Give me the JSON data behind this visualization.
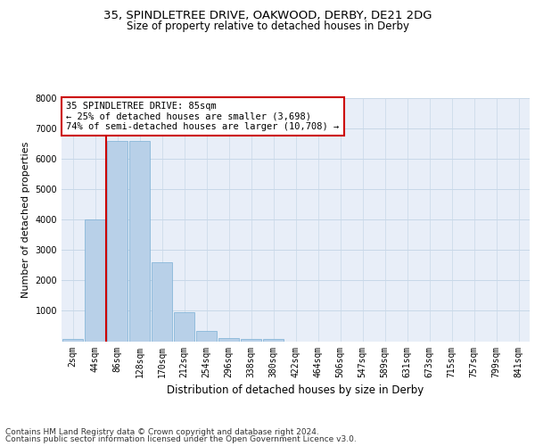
{
  "title_line1": "35, SPINDLETREE DRIVE, OAKWOOD, DERBY, DE21 2DG",
  "title_line2": "Size of property relative to detached houses in Derby",
  "xlabel": "Distribution of detached houses by size in Derby",
  "ylabel": "Number of detached properties",
  "categories": [
    "2sqm",
    "44sqm",
    "86sqm",
    "128sqm",
    "170sqm",
    "212sqm",
    "254sqm",
    "296sqm",
    "338sqm",
    "380sqm",
    "422sqm",
    "464sqm",
    "506sqm",
    "547sqm",
    "589sqm",
    "631sqm",
    "673sqm",
    "715sqm",
    "757sqm",
    "799sqm",
    "841sqm"
  ],
  "values": [
    70,
    4000,
    6600,
    6600,
    2600,
    950,
    340,
    110,
    60,
    60,
    0,
    0,
    0,
    0,
    0,
    0,
    0,
    0,
    0,
    0,
    0
  ],
  "bar_color": "#b8d0e8",
  "bar_edge_color": "#7aafd4",
  "vline_color": "#cc0000",
  "annotation_text": "35 SPINDLETREE DRIVE: 85sqm\n← 25% of detached houses are smaller (3,698)\n74% of semi-detached houses are larger (10,708) →",
  "annotation_box_color": "#ffffff",
  "annotation_box_edge_color": "#cc0000",
  "ylim": [
    0,
    8000
  ],
  "yticks": [
    0,
    1000,
    2000,
    3000,
    4000,
    5000,
    6000,
    7000,
    8000
  ],
  "grid_color": "#c8d8e8",
  "background_color": "#e8eef8",
  "footer_line1": "Contains HM Land Registry data © Crown copyright and database right 2024.",
  "footer_line2": "Contains public sector information licensed under the Open Government Licence v3.0.",
  "title_fontsize": 9.5,
  "subtitle_fontsize": 8.5,
  "ylabel_fontsize": 8,
  "xlabel_fontsize": 8.5,
  "tick_fontsize": 7,
  "annot_fontsize": 7.5,
  "footer_fontsize": 6.5
}
